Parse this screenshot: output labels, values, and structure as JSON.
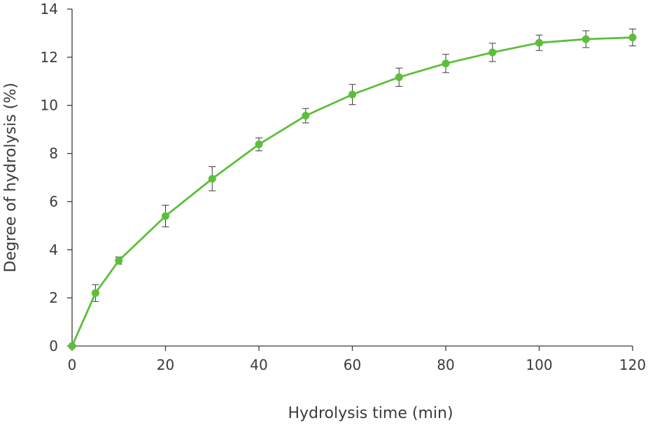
{
  "chart_data": {
    "type": "line",
    "title": "",
    "xlabel": "Hydrolysis time (min)",
    "ylabel": "Degree  of hydrolysis (%)",
    "xlim": [
      0,
      120
    ],
    "ylim": [
      0,
      14
    ],
    "x_ticks": [
      0,
      20,
      40,
      60,
      80,
      100,
      120
    ],
    "y_ticks": [
      0,
      2,
      4,
      6,
      8,
      10,
      12,
      14
    ],
    "grid": false,
    "series": [
      {
        "color": "#5cbf3a",
        "marker": "circle",
        "x": [
          0,
          5,
          10,
          20,
          30,
          40,
          50,
          60,
          70,
          80,
          90,
          100,
          110,
          120
        ],
        "y": [
          0,
          2.2,
          3.55,
          5.4,
          6.95,
          8.38,
          9.57,
          10.45,
          11.17,
          11.74,
          12.2,
          12.6,
          12.75,
          12.82
        ],
        "error": [
          0,
          0.35,
          0.15,
          0.45,
          0.5,
          0.27,
          0.3,
          0.42,
          0.38,
          0.38,
          0.38,
          0.32,
          0.35,
          0.35
        ]
      }
    ],
    "colors": {
      "axis": "#3a3a3a",
      "error_bar": "#3a3a3a"
    }
  }
}
